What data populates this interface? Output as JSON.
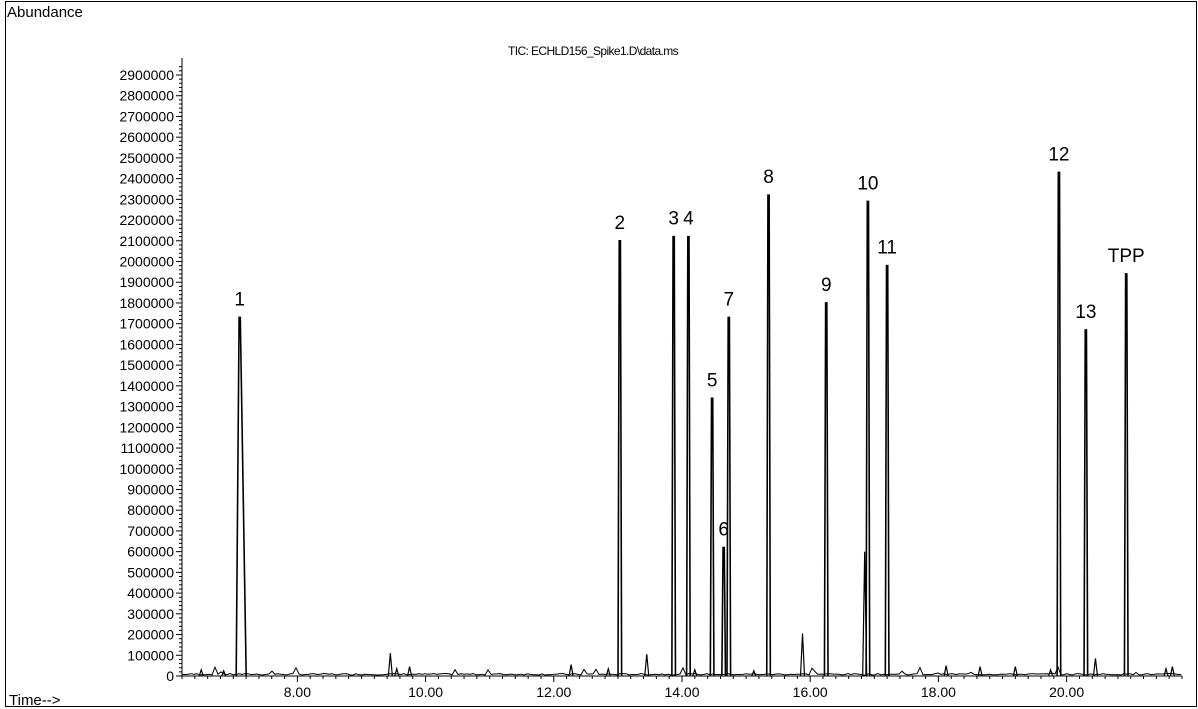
{
  "chart_data": {
    "type": "line",
    "title": "TIC: ECHLD156_Spike1.D\\data.ms",
    "ylabel": "Abundance",
    "xlabel": "Time-->",
    "xlim": [
      6.2,
      21.8
    ],
    "ylim": [
      0,
      3000000
    ],
    "yticks": [
      0,
      100000,
      200000,
      300000,
      400000,
      500000,
      600000,
      700000,
      800000,
      900000,
      1000000,
      1100000,
      1200000,
      1300000,
      1400000,
      1500000,
      1600000,
      1700000,
      1800000,
      1900000,
      2000000,
      2100000,
      2200000,
      2300000,
      2400000,
      2500000,
      2600000,
      2700000,
      2800000,
      2900000
    ],
    "xticks": [
      "8.00",
      "10.00",
      "12.00",
      "14.00",
      "16.00",
      "18.00",
      "20.00"
    ],
    "xtick_values": [
      8,
      10,
      12,
      14,
      16,
      18,
      20
    ],
    "grid": false,
    "peaks": [
      {
        "label": "1",
        "time": 7.1,
        "abundance": 1730000
      },
      {
        "label": "2",
        "time": 13.03,
        "abundance": 2100000
      },
      {
        "label": "3",
        "time": 13.87,
        "abundance": 2120000
      },
      {
        "label": "4",
        "time": 14.1,
        "abundance": 2120000
      },
      {
        "label": "5",
        "time": 14.47,
        "abundance": 1340000
      },
      {
        "label": "6",
        "time": 14.65,
        "abundance": 620000
      },
      {
        "label": "7",
        "time": 14.73,
        "abundance": 1730000
      },
      {
        "label": "8",
        "time": 15.35,
        "abundance": 2320000
      },
      {
        "label": "9",
        "time": 16.25,
        "abundance": 1800000
      },
      {
        "label": "10",
        "time": 16.9,
        "abundance": 2290000
      },
      {
        "label": "11",
        "time": 17.2,
        "abundance": 1980000
      },
      {
        "label": "12",
        "time": 19.88,
        "abundance": 2430000
      },
      {
        "label": "13",
        "time": 20.3,
        "abundance": 1670000
      },
      {
        "label": "TPP",
        "time": 20.93,
        "abundance": 1940000
      }
    ],
    "minor_peaks": [
      {
        "time": 6.5,
        "abundance": 30000
      },
      {
        "time": 6.85,
        "abundance": 25000
      },
      {
        "time": 9.45,
        "abundance": 110000
      },
      {
        "time": 9.55,
        "abundance": 35000
      },
      {
        "time": 9.75,
        "abundance": 45000
      },
      {
        "time": 12.27,
        "abundance": 55000
      },
      {
        "time": 12.85,
        "abundance": 35000
      },
      {
        "time": 13.45,
        "abundance": 105000
      },
      {
        "time": 14.2,
        "abundance": 30000
      },
      {
        "time": 15.12,
        "abundance": 25000
      },
      {
        "time": 15.88,
        "abundance": 205000
      },
      {
        "time": 16.85,
        "abundance": 600000
      },
      {
        "time": 18.12,
        "abundance": 50000
      },
      {
        "time": 18.65,
        "abundance": 45000
      },
      {
        "time": 19.2,
        "abundance": 45000
      },
      {
        "time": 19.75,
        "abundance": 30000
      },
      {
        "time": 20.45,
        "abundance": 85000
      },
      {
        "time": 21.55,
        "abundance": 35000
      },
      {
        "time": 21.65,
        "abundance": 45000
      }
    ]
  }
}
